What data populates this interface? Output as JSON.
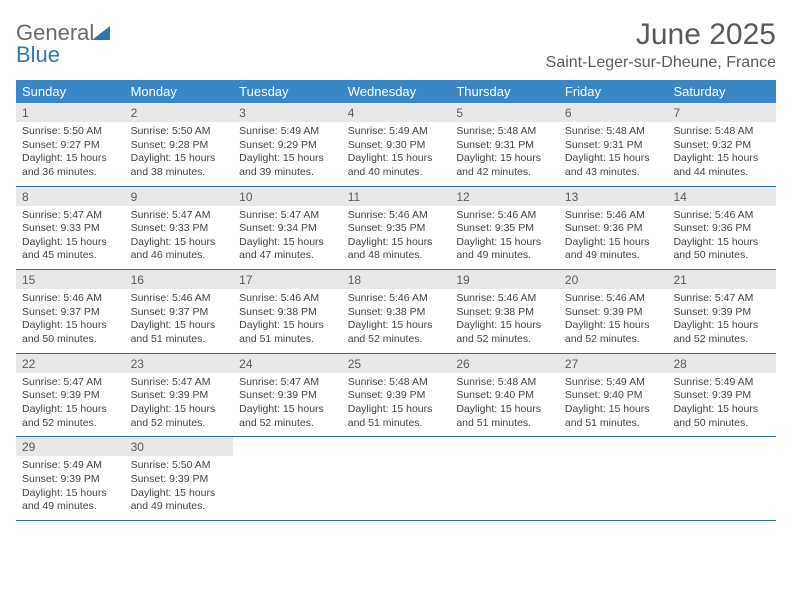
{
  "logo": {
    "text1": "General",
    "text2": "Blue"
  },
  "title": "June 2025",
  "location": "Saint-Leger-sur-Dheune, France",
  "colors": {
    "header_bg": "#3a87c7",
    "daynum_bg": "#e8e8e8",
    "rule": "#2a6fa5",
    "text": "#5a5a5a",
    "logo_blue": "#2a7ab0"
  },
  "dow": [
    "Sunday",
    "Monday",
    "Tuesday",
    "Wednesday",
    "Thursday",
    "Friday",
    "Saturday"
  ],
  "weeks": [
    [
      {
        "num": "1",
        "sunrise": "Sunrise: 5:50 AM",
        "sunset": "Sunset: 9:27 PM",
        "daylight": "Daylight: 15 hours and 36 minutes."
      },
      {
        "num": "2",
        "sunrise": "Sunrise: 5:50 AM",
        "sunset": "Sunset: 9:28 PM",
        "daylight": "Daylight: 15 hours and 38 minutes."
      },
      {
        "num": "3",
        "sunrise": "Sunrise: 5:49 AM",
        "sunset": "Sunset: 9:29 PM",
        "daylight": "Daylight: 15 hours and 39 minutes."
      },
      {
        "num": "4",
        "sunrise": "Sunrise: 5:49 AM",
        "sunset": "Sunset: 9:30 PM",
        "daylight": "Daylight: 15 hours and 40 minutes."
      },
      {
        "num": "5",
        "sunrise": "Sunrise: 5:48 AM",
        "sunset": "Sunset: 9:31 PM",
        "daylight": "Daylight: 15 hours and 42 minutes."
      },
      {
        "num": "6",
        "sunrise": "Sunrise: 5:48 AM",
        "sunset": "Sunset: 9:31 PM",
        "daylight": "Daylight: 15 hours and 43 minutes."
      },
      {
        "num": "7",
        "sunrise": "Sunrise: 5:48 AM",
        "sunset": "Sunset: 9:32 PM",
        "daylight": "Daylight: 15 hours and 44 minutes."
      }
    ],
    [
      {
        "num": "8",
        "sunrise": "Sunrise: 5:47 AM",
        "sunset": "Sunset: 9:33 PM",
        "daylight": "Daylight: 15 hours and 45 minutes."
      },
      {
        "num": "9",
        "sunrise": "Sunrise: 5:47 AM",
        "sunset": "Sunset: 9:33 PM",
        "daylight": "Daylight: 15 hours and 46 minutes."
      },
      {
        "num": "10",
        "sunrise": "Sunrise: 5:47 AM",
        "sunset": "Sunset: 9:34 PM",
        "daylight": "Daylight: 15 hours and 47 minutes."
      },
      {
        "num": "11",
        "sunrise": "Sunrise: 5:46 AM",
        "sunset": "Sunset: 9:35 PM",
        "daylight": "Daylight: 15 hours and 48 minutes."
      },
      {
        "num": "12",
        "sunrise": "Sunrise: 5:46 AM",
        "sunset": "Sunset: 9:35 PM",
        "daylight": "Daylight: 15 hours and 49 minutes."
      },
      {
        "num": "13",
        "sunrise": "Sunrise: 5:46 AM",
        "sunset": "Sunset: 9:36 PM",
        "daylight": "Daylight: 15 hours and 49 minutes."
      },
      {
        "num": "14",
        "sunrise": "Sunrise: 5:46 AM",
        "sunset": "Sunset: 9:36 PM",
        "daylight": "Daylight: 15 hours and 50 minutes."
      }
    ],
    [
      {
        "num": "15",
        "sunrise": "Sunrise: 5:46 AM",
        "sunset": "Sunset: 9:37 PM",
        "daylight": "Daylight: 15 hours and 50 minutes."
      },
      {
        "num": "16",
        "sunrise": "Sunrise: 5:46 AM",
        "sunset": "Sunset: 9:37 PM",
        "daylight": "Daylight: 15 hours and 51 minutes."
      },
      {
        "num": "17",
        "sunrise": "Sunrise: 5:46 AM",
        "sunset": "Sunset: 9:38 PM",
        "daylight": "Daylight: 15 hours and 51 minutes."
      },
      {
        "num": "18",
        "sunrise": "Sunrise: 5:46 AM",
        "sunset": "Sunset: 9:38 PM",
        "daylight": "Daylight: 15 hours and 52 minutes."
      },
      {
        "num": "19",
        "sunrise": "Sunrise: 5:46 AM",
        "sunset": "Sunset: 9:38 PM",
        "daylight": "Daylight: 15 hours and 52 minutes."
      },
      {
        "num": "20",
        "sunrise": "Sunrise: 5:46 AM",
        "sunset": "Sunset: 9:39 PM",
        "daylight": "Daylight: 15 hours and 52 minutes."
      },
      {
        "num": "21",
        "sunrise": "Sunrise: 5:47 AM",
        "sunset": "Sunset: 9:39 PM",
        "daylight": "Daylight: 15 hours and 52 minutes."
      }
    ],
    [
      {
        "num": "22",
        "sunrise": "Sunrise: 5:47 AM",
        "sunset": "Sunset: 9:39 PM",
        "daylight": "Daylight: 15 hours and 52 minutes."
      },
      {
        "num": "23",
        "sunrise": "Sunrise: 5:47 AM",
        "sunset": "Sunset: 9:39 PM",
        "daylight": "Daylight: 15 hours and 52 minutes."
      },
      {
        "num": "24",
        "sunrise": "Sunrise: 5:47 AM",
        "sunset": "Sunset: 9:39 PM",
        "daylight": "Daylight: 15 hours and 52 minutes."
      },
      {
        "num": "25",
        "sunrise": "Sunrise: 5:48 AM",
        "sunset": "Sunset: 9:39 PM",
        "daylight": "Daylight: 15 hours and 51 minutes."
      },
      {
        "num": "26",
        "sunrise": "Sunrise: 5:48 AM",
        "sunset": "Sunset: 9:40 PM",
        "daylight": "Daylight: 15 hours and 51 minutes."
      },
      {
        "num": "27",
        "sunrise": "Sunrise: 5:49 AM",
        "sunset": "Sunset: 9:40 PM",
        "daylight": "Daylight: 15 hours and 51 minutes."
      },
      {
        "num": "28",
        "sunrise": "Sunrise: 5:49 AM",
        "sunset": "Sunset: 9:39 PM",
        "daylight": "Daylight: 15 hours and 50 minutes."
      }
    ],
    [
      {
        "num": "29",
        "sunrise": "Sunrise: 5:49 AM",
        "sunset": "Sunset: 9:39 PM",
        "daylight": "Daylight: 15 hours and 49 minutes."
      },
      {
        "num": "30",
        "sunrise": "Sunrise: 5:50 AM",
        "sunset": "Sunset: 9:39 PM",
        "daylight": "Daylight: 15 hours and 49 minutes."
      },
      {
        "empty": true
      },
      {
        "empty": true
      },
      {
        "empty": true
      },
      {
        "empty": true
      },
      {
        "empty": true
      }
    ]
  ]
}
